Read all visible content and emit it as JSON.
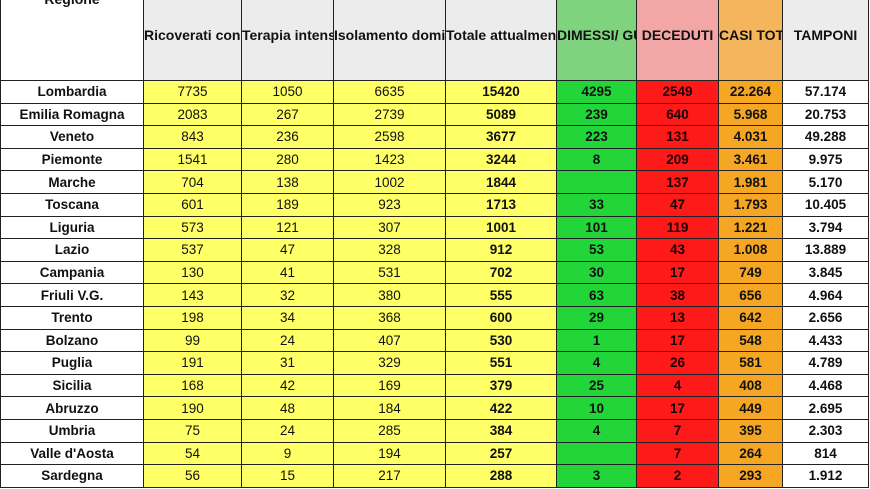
{
  "headers": [
    "Regione",
    "Ricoverati con sintomi",
    "Terapia intensiva",
    "Isolamento domiciliare",
    "Totale attualmente positivi",
    "DIMESSI/ GUARITI",
    "DECEDUTI",
    "CASI TOTALI",
    "TAMPONI"
  ],
  "rows": [
    [
      "Lombardia",
      "7735",
      "1050",
      "6635",
      "15420",
      "4295",
      "2549",
      "22.264",
      "57.174"
    ],
    [
      "Emilia Romagna",
      "2083",
      "267",
      "2739",
      "5089",
      "239",
      "640",
      "5.968",
      "20.753"
    ],
    [
      "Veneto",
      "843",
      "236",
      "2598",
      "3677",
      "223",
      "131",
      "4.031",
      "49.288"
    ],
    [
      "Piemonte",
      "1541",
      "280",
      "1423",
      "3244",
      "8",
      "209",
      "3.461",
      "9.975"
    ],
    [
      "Marche",
      "704",
      "138",
      "1002",
      "1844",
      "",
      "137",
      "1.981",
      "5.170"
    ],
    [
      "Toscana",
      "601",
      "189",
      "923",
      "1713",
      "33",
      "47",
      "1.793",
      "10.405"
    ],
    [
      "Liguria",
      "573",
      "121",
      "307",
      "1001",
      "101",
      "119",
      "1.221",
      "3.794"
    ],
    [
      "Lazio",
      "537",
      "47",
      "328",
      "912",
      "53",
      "43",
      "1.008",
      "13.889"
    ],
    [
      "Campania",
      "130",
      "41",
      "531",
      "702",
      "30",
      "17",
      "749",
      "3.845"
    ],
    [
      "Friuli V.G.",
      "143",
      "32",
      "380",
      "555",
      "63",
      "38",
      "656",
      "4.964"
    ],
    [
      "Trento",
      "198",
      "34",
      "368",
      "600",
      "29",
      "13",
      "642",
      "2.656"
    ],
    [
      "Bolzano",
      "99",
      "24",
      "407",
      "530",
      "1",
      "17",
      "548",
      "4.433"
    ],
    [
      "Puglia",
      "191",
      "31",
      "329",
      "551",
      "4",
      "26",
      "581",
      "4.789"
    ],
    [
      "Sicilia",
      "168",
      "42",
      "169",
      "379",
      "25",
      "4",
      "408",
      "4.468"
    ],
    [
      "Abruzzo",
      "190",
      "48",
      "184",
      "422",
      "10",
      "17",
      "449",
      "2.695"
    ],
    [
      "Umbria",
      "75",
      "24",
      "285",
      "384",
      "4",
      "7",
      "395",
      "2.303"
    ],
    [
      "Valle d'Aosta",
      "54",
      "9",
      "194",
      "257",
      "",
      "7",
      "264",
      "814"
    ],
    [
      "Sardegna",
      "56",
      "15",
      "217",
      "288",
      "3",
      "2",
      "293",
      "1.912"
    ]
  ],
  "colors": {
    "yellow": "#ffff66",
    "green": "#22d639",
    "red": "#ff1a1a",
    "orange": "#f5a623"
  }
}
